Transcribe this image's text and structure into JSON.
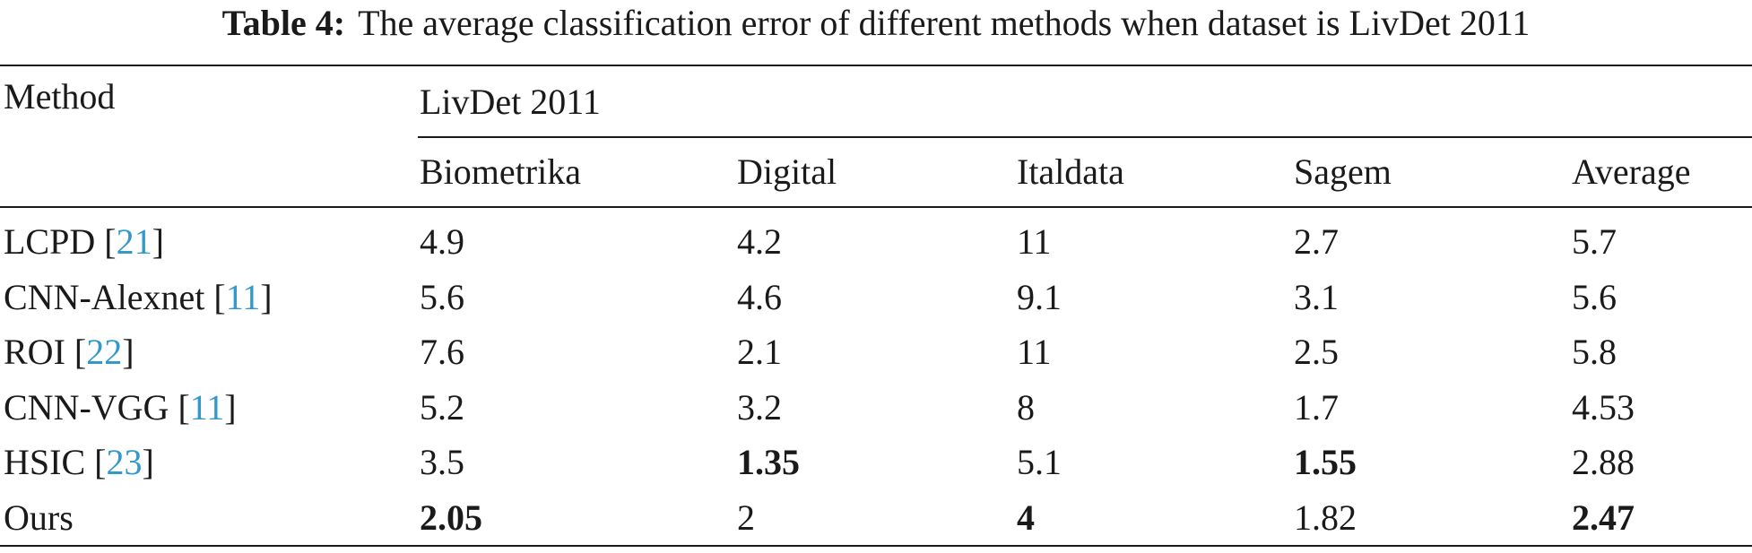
{
  "caption": {
    "label": "Table 4:",
    "text": "The average classification error of different methods when dataset is LivDet 2011"
  },
  "table": {
    "header": {
      "method": "Method",
      "group": "LivDet 2011",
      "columns": [
        "Biometrika",
        "Digital",
        "Italdata",
        "Sagem",
        "Average"
      ]
    },
    "rows": [
      {
        "method": "LCPD",
        "ref": "21",
        "values": [
          "4.9",
          "4.2",
          "11",
          "2.7",
          "5.7"
        ],
        "bold": [
          false,
          false,
          false,
          false,
          false
        ]
      },
      {
        "method": "CNN-Alexnet",
        "ref": "11",
        "values": [
          "5.6",
          "4.6",
          "9.1",
          "3.1",
          "5.6"
        ],
        "bold": [
          false,
          false,
          false,
          false,
          false
        ]
      },
      {
        "method": "ROI",
        "ref": "22",
        "values": [
          "7.6",
          "2.1",
          "11",
          "2.5",
          "5.8"
        ],
        "bold": [
          false,
          false,
          false,
          false,
          false
        ]
      },
      {
        "method": "CNN-VGG",
        "ref": "11",
        "values": [
          "5.2",
          "3.2",
          "8",
          "1.7",
          "4.53"
        ],
        "bold": [
          false,
          false,
          false,
          false,
          false
        ]
      },
      {
        "method": "HSIC",
        "ref": "23",
        "values": [
          "3.5",
          "1.35",
          "5.1",
          "1.55",
          "2.88"
        ],
        "bold": [
          false,
          true,
          false,
          true,
          false
        ]
      },
      {
        "method": "Ours",
        "ref": "",
        "values": [
          "2.05",
          "2",
          "4",
          "1.82",
          "2.47"
        ],
        "bold": [
          true,
          false,
          true,
          false,
          true
        ]
      }
    ]
  },
  "colors": {
    "text": "#1a1a1a",
    "ref_link": "#3399cc"
  }
}
